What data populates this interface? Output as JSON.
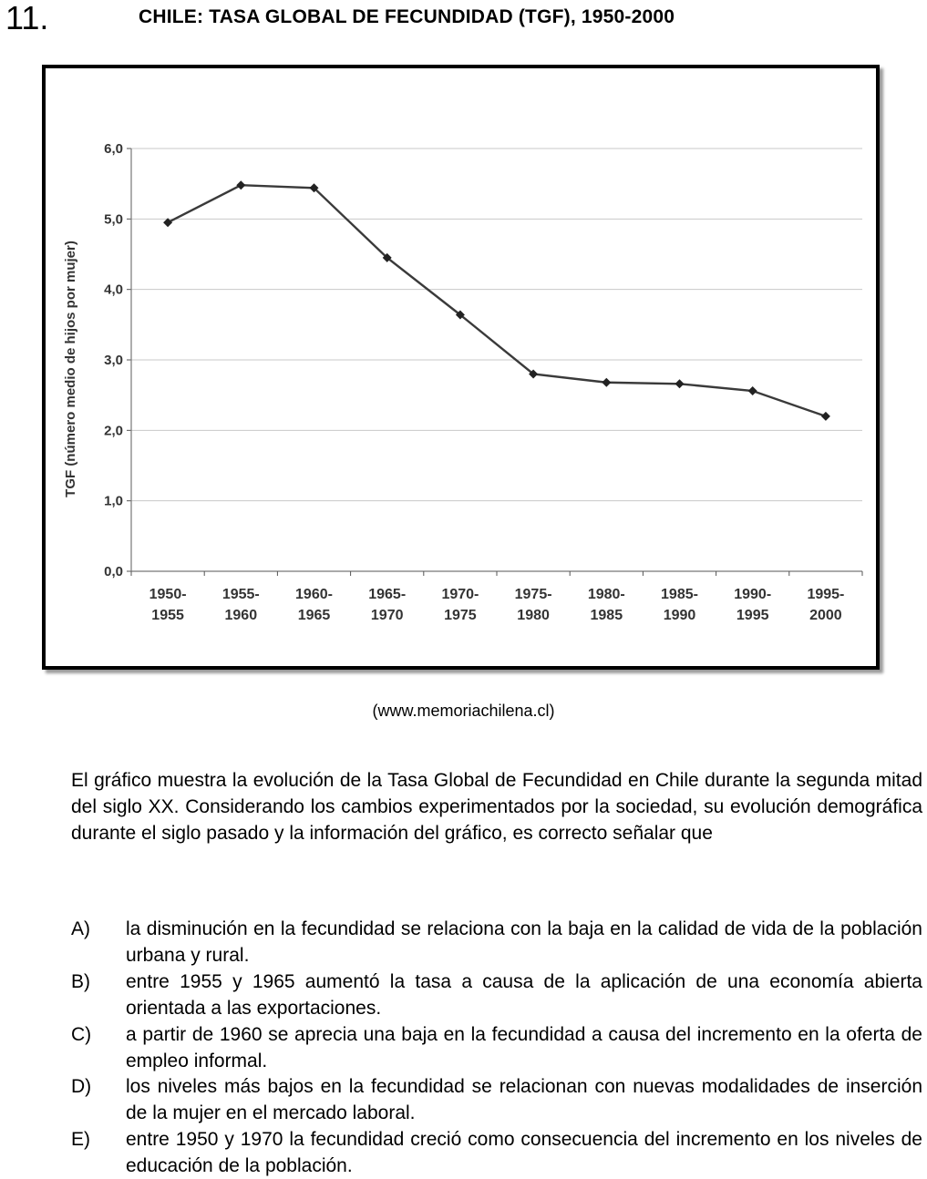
{
  "question": {
    "number": "11.",
    "title": "CHILE: TASA GLOBAL DE FECUNDIDAD (TGF), 1950-2000",
    "source": "(www.memoriachilena.cl)",
    "stem": "El gráfico muestra la evolución de la Tasa Global de Fecundidad en Chile durante la segunda mitad del siglo XX. Considerando los cambios experimentados por la sociedad, su evolución demográfica durante el siglo pasado y la información del gráfico, es correcto señalar que",
    "options": [
      {
        "letter": "A)",
        "text": "la disminución en la fecundidad se relaciona con la baja en la calidad de vida de la población urbana y rural."
      },
      {
        "letter": "B)",
        "text": "entre 1955 y 1965 aumentó la tasa a causa de la aplicación de una economía abierta orientada a las exportaciones."
      },
      {
        "letter": "C)",
        "text": "a partir de 1960 se aprecia una baja en la fecundidad a causa del incremento en la oferta de empleo informal."
      },
      {
        "letter": "D)",
        "text": "los niveles más bajos en la fecundidad se relacionan con nuevas modalidades de inserción de la mujer en el mercado laboral."
      },
      {
        "letter": "E)",
        "text": "entre 1950 y 1970 la fecundidad creció como consecuencia del incremento en los niveles de educación de la población."
      }
    ]
  },
  "chart_data": {
    "type": "line",
    "categories": [
      [
        "1950-",
        "1955"
      ],
      [
        "1955-",
        "1960"
      ],
      [
        "1960-",
        "1965"
      ],
      [
        "1965-",
        "1970"
      ],
      [
        "1970-",
        "1975"
      ],
      [
        "1975-",
        "1980"
      ],
      [
        "1980-",
        "1985"
      ],
      [
        "1985-",
        "1990"
      ],
      [
        "1990-",
        "1995"
      ],
      [
        "1995-",
        "2000"
      ]
    ],
    "values": [
      4.95,
      5.48,
      5.44,
      4.45,
      3.64,
      2.8,
      2.68,
      2.66,
      2.56,
      2.2
    ],
    "ylabel": "TGF (número medio de hijos por mujer)",
    "ylim": [
      0,
      6
    ],
    "yticks": [
      "0,0",
      "1,0",
      "2,0",
      "3,0",
      "4,0",
      "5,0",
      "6,0"
    ],
    "grid": true,
    "line_color": "#3a3a3a"
  }
}
